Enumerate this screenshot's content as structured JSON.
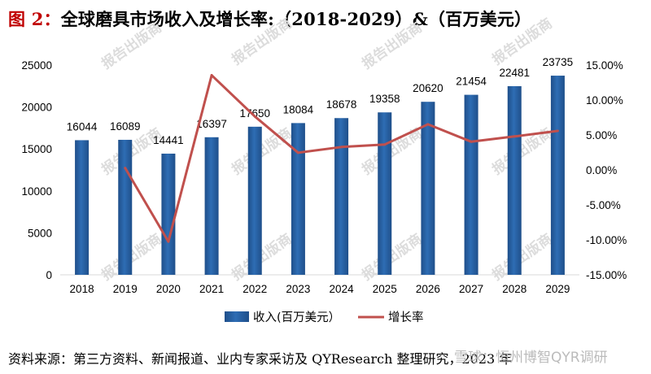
{
  "figure": {
    "prefix": "图 2：",
    "title": "全球磨具市场收入及增长率:（2018-2029）&（百万美元）",
    "source": "资料来源：第三方资料、新闻报道、业内专家采访及 QYResearch 整理研究，2023 年",
    "watermark": "报告出版商",
    "brand_watermark": "雪球：恒州博智QYR调研"
  },
  "colors": {
    "bar": "#2e6db4",
    "bar_dark": "#1f4f8a",
    "line": "#c0504d",
    "title_accent": "#c00000"
  },
  "chart_data": {
    "type": "bar",
    "categories": [
      "2018",
      "2019",
      "2020",
      "2021",
      "2022",
      "2023",
      "2024",
      "2025",
      "2026",
      "2027",
      "2028",
      "2029"
    ],
    "series": [
      {
        "name": "收入(百万美元）",
        "type": "bar",
        "axis": "left",
        "values": [
          16044,
          16089,
          14441,
          16397,
          17650,
          18084,
          18678,
          19358,
          20620,
          21454,
          22481,
          23735
        ],
        "labels": [
          "16044",
          "16089",
          "14441",
          "16397",
          "17650",
          "18084",
          "18678",
          "19358",
          "20620",
          "21454",
          "22481",
          "23735"
        ]
      },
      {
        "name": "增长率",
        "type": "line",
        "axis": "right",
        "values": [
          null,
          0.28,
          -10.24,
          13.54,
          7.64,
          2.46,
          3.28,
          3.64,
          6.52,
          4.04,
          4.79,
          5.58
        ]
      }
    ],
    "y_left": {
      "min": 0,
      "max": 25000,
      "ticks": [
        "0",
        "5000",
        "10000",
        "15000",
        "20000",
        "25000"
      ]
    },
    "y_right": {
      "min": -15,
      "max": 15,
      "ticks": [
        "-15.00%",
        "-10.00%",
        "-5.00%",
        "0.00%",
        "5.00%",
        "10.00%",
        "15.00%"
      ]
    },
    "legend": {
      "position": "bottom",
      "bar_label": "收入(百万美元）",
      "line_label": "增长率"
    },
    "grid": false
  }
}
